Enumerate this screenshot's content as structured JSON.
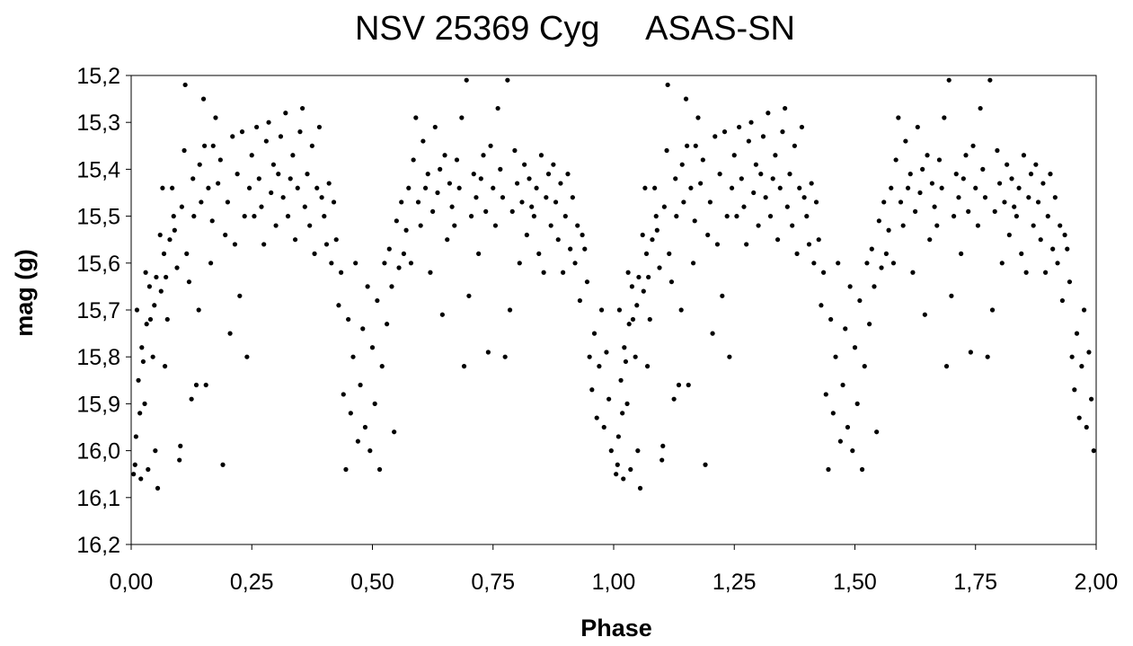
{
  "chart_data": {
    "type": "scatter",
    "title": "NSV 25369 Cyg     ASAS-SN",
    "xlabel": "Phase",
    "ylabel": "mag (g)",
    "xlim": [
      0.0,
      2.0
    ],
    "ylim": [
      15.2,
      16.2
    ],
    "y_inverted": true,
    "grid": false,
    "legend": "none",
    "x_ticks": [
      "0,00",
      "0,25",
      "0,50",
      "0,75",
      "1,00",
      "1,25",
      "1,50",
      "1,75",
      "2,00"
    ],
    "y_ticks": [
      "15,2",
      "15,3",
      "15,4",
      "15,5",
      "15,6",
      "15,7",
      "15,8",
      "15,9",
      "16,0",
      "16,1",
      "16,2"
    ],
    "marker_color": "#000000",
    "series": [
      {
        "points": [
          [
            0.005,
            16.05
          ],
          [
            0.008,
            16.03
          ],
          [
            0.01,
            15.97
          ],
          [
            0.012,
            15.7
          ],
          [
            0.015,
            15.85
          ],
          [
            0.018,
            15.92
          ],
          [
            0.02,
            16.06
          ],
          [
            0.022,
            15.78
          ],
          [
            0.025,
            15.81
          ],
          [
            0.028,
            15.9
          ],
          [
            0.03,
            15.62
          ],
          [
            0.032,
            15.73
          ],
          [
            0.035,
            16.04
          ],
          [
            0.038,
            15.65
          ],
          [
            0.04,
            15.72
          ],
          [
            0.045,
            15.8
          ],
          [
            0.048,
            15.69
          ],
          [
            0.05,
            16.0
          ],
          [
            0.052,
            15.63
          ],
          [
            0.055,
            16.08
          ],
          [
            0.06,
            15.54
          ],
          [
            0.062,
            15.66
          ],
          [
            0.065,
            15.44
          ],
          [
            0.068,
            15.58
          ],
          [
            0.07,
            15.82
          ],
          [
            0.072,
            15.63
          ],
          [
            0.075,
            15.72
          ],
          [
            0.08,
            15.55
          ],
          [
            0.085,
            15.44
          ],
          [
            0.088,
            15.5
          ],
          [
            0.09,
            15.53
          ],
          [
            0.095,
            15.61
          ],
          [
            0.1,
            16.02
          ],
          [
            0.102,
            15.99
          ],
          [
            0.105,
            15.48
          ],
          [
            0.11,
            15.36
          ],
          [
            0.112,
            15.22
          ],
          [
            0.115,
            15.58
          ],
          [
            0.12,
            15.64
          ],
          [
            0.125,
            15.89
          ],
          [
            0.128,
            15.42
          ],
          [
            0.13,
            15.5
          ],
          [
            0.135,
            15.86
          ],
          [
            0.14,
            15.7
          ],
          [
            0.142,
            15.39
          ],
          [
            0.145,
            15.47
          ],
          [
            0.15,
            15.25
          ],
          [
            0.152,
            15.35
          ],
          [
            0.155,
            15.86
          ],
          [
            0.16,
            15.44
          ],
          [
            0.165,
            15.6
          ],
          [
            0.168,
            15.51
          ],
          [
            0.17,
            15.35
          ],
          [
            0.175,
            15.29
          ],
          [
            0.18,
            15.43
          ],
          [
            0.185,
            15.38
          ],
          [
            0.19,
            16.03
          ],
          [
            0.195,
            15.54
          ],
          [
            0.2,
            15.47
          ],
          [
            0.205,
            15.75
          ],
          [
            0.21,
            15.33
          ],
          [
            0.215,
            15.56
          ],
          [
            0.22,
            15.41
          ],
          [
            0.225,
            15.67
          ],
          [
            0.23,
            15.32
          ],
          [
            0.235,
            15.5
          ],
          [
            0.24,
            15.8
          ],
          [
            0.245,
            15.44
          ],
          [
            0.25,
            15.37
          ],
          [
            0.255,
            15.5
          ],
          [
            0.26,
            15.31
          ],
          [
            0.265,
            15.42
          ],
          [
            0.27,
            15.48
          ],
          [
            0.275,
            15.56
          ],
          [
            0.28,
            15.34
          ],
          [
            0.285,
            15.3
          ],
          [
            0.29,
            15.45
          ],
          [
            0.295,
            15.39
          ],
          [
            0.3,
            15.52
          ],
          [
            0.305,
            15.41
          ],
          [
            0.31,
            15.33
          ],
          [
            0.315,
            15.46
          ],
          [
            0.32,
            15.28
          ],
          [
            0.325,
            15.5
          ],
          [
            0.33,
            15.42
          ],
          [
            0.335,
            15.37
          ],
          [
            0.34,
            15.55
          ],
          [
            0.345,
            15.44
          ],
          [
            0.35,
            15.32
          ],
          [
            0.355,
            15.27
          ],
          [
            0.36,
            15.48
          ],
          [
            0.365,
            15.41
          ],
          [
            0.37,
            15.52
          ],
          [
            0.375,
            15.35
          ],
          [
            0.38,
            15.58
          ],
          [
            0.385,
            15.44
          ],
          [
            0.39,
            15.31
          ],
          [
            0.395,
            15.46
          ],
          [
            0.4,
            15.5
          ],
          [
            0.405,
            15.56
          ],
          [
            0.41,
            15.43
          ],
          [
            0.415,
            15.6
          ],
          [
            0.42,
            15.47
          ],
          [
            0.425,
            15.55
          ],
          [
            0.43,
            15.69
          ],
          [
            0.435,
            15.62
          ],
          [
            0.44,
            15.88
          ],
          [
            0.445,
            16.04
          ],
          [
            0.45,
            15.72
          ],
          [
            0.455,
            15.92
          ],
          [
            0.46,
            15.8
          ],
          [
            0.465,
            15.6
          ],
          [
            0.47,
            15.98
          ],
          [
            0.475,
            15.86
          ],
          [
            0.48,
            15.74
          ],
          [
            0.485,
            15.95
          ],
          [
            0.49,
            15.65
          ],
          [
            0.495,
            16.0
          ],
          [
            0.5,
            15.78
          ],
          [
            0.505,
            15.9
          ],
          [
            0.51,
            15.68
          ],
          [
            0.515,
            16.04
          ],
          [
            0.52,
            15.82
          ],
          [
            0.525,
            15.6
          ],
          [
            0.53,
            15.73
          ],
          [
            0.535,
            15.57
          ],
          [
            0.54,
            15.65
          ],
          [
            0.545,
            15.96
          ],
          [
            0.55,
            15.51
          ],
          [
            0.555,
            15.61
          ],
          [
            0.56,
            15.47
          ],
          [
            0.565,
            15.58
          ],
          [
            0.57,
            15.53
          ],
          [
            0.575,
            15.44
          ],
          [
            0.58,
            15.6
          ],
          [
            0.585,
            15.38
          ],
          [
            0.59,
            15.29
          ],
          [
            0.595,
            15.47
          ],
          [
            0.6,
            15.52
          ],
          [
            0.605,
            15.34
          ],
          [
            0.61,
            15.44
          ],
          [
            0.615,
            15.41
          ],
          [
            0.62,
            15.62
          ],
          [
            0.625,
            15.49
          ],
          [
            0.63,
            15.31
          ],
          [
            0.635,
            15.45
          ],
          [
            0.64,
            15.4
          ],
          [
            0.645,
            15.71
          ],
          [
            0.65,
            15.37
          ],
          [
            0.655,
            15.55
          ],
          [
            0.66,
            15.43
          ],
          [
            0.665,
            15.48
          ],
          [
            0.67,
            15.52
          ],
          [
            0.675,
            15.38
          ],
          [
            0.68,
            15.44
          ],
          [
            0.685,
            15.29
          ],
          [
            0.69,
            15.82
          ],
          [
            0.695,
            15.21
          ],
          [
            0.7,
            15.67
          ],
          [
            0.705,
            15.5
          ],
          [
            0.71,
            15.41
          ],
          [
            0.715,
            15.46
          ],
          [
            0.72,
            15.58
          ],
          [
            0.725,
            15.42
          ],
          [
            0.73,
            15.37
          ],
          [
            0.735,
            15.49
          ],
          [
            0.74,
            15.79
          ],
          [
            0.745,
            15.35
          ],
          [
            0.75,
            15.44
          ],
          [
            0.755,
            15.52
          ],
          [
            0.76,
            15.27
          ],
          [
            0.765,
            15.4
          ],
          [
            0.77,
            15.46
          ],
          [
            0.775,
            15.8
          ],
          [
            0.78,
            15.21
          ],
          [
            0.785,
            15.7
          ],
          [
            0.79,
            15.49
          ],
          [
            0.795,
            15.36
          ],
          [
            0.8,
            15.43
          ],
          [
            0.805,
            15.6
          ],
          [
            0.81,
            15.47
          ],
          [
            0.815,
            15.39
          ],
          [
            0.82,
            15.54
          ],
          [
            0.825,
            15.42
          ],
          [
            0.83,
            15.48
          ],
          [
            0.835,
            15.5
          ],
          [
            0.84,
            15.44
          ],
          [
            0.845,
            15.58
          ],
          [
            0.85,
            15.37
          ],
          [
            0.855,
            15.62
          ],
          [
            0.86,
            15.46
          ],
          [
            0.865,
            15.41
          ],
          [
            0.87,
            15.52
          ],
          [
            0.875,
            15.39
          ],
          [
            0.88,
            15.47
          ],
          [
            0.885,
            15.55
          ],
          [
            0.89,
            15.43
          ],
          [
            0.895,
            15.62
          ],
          [
            0.9,
            15.5
          ],
          [
            0.905,
            15.41
          ],
          [
            0.91,
            15.57
          ],
          [
            0.915,
            15.46
          ],
          [
            0.92,
            15.6
          ],
          [
            0.925,
            15.52
          ],
          [
            0.93,
            15.68
          ],
          [
            0.935,
            15.54
          ],
          [
            0.94,
            15.57
          ],
          [
            0.945,
            15.64
          ],
          [
            0.95,
            15.8
          ],
          [
            0.955,
            15.87
          ],
          [
            0.96,
            15.75
          ],
          [
            0.965,
            15.93
          ],
          [
            0.97,
            15.82
          ],
          [
            0.975,
            15.7
          ],
          [
            0.98,
            15.95
          ],
          [
            0.985,
            15.79
          ],
          [
            0.99,
            15.89
          ],
          [
            0.995,
            16.0
          ]
        ]
      }
    ]
  }
}
